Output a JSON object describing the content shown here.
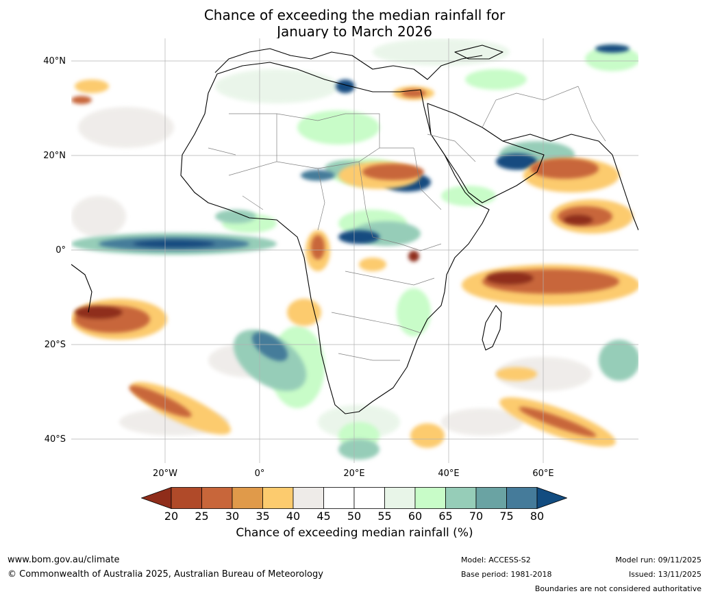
{
  "title": {
    "line1": "Chance of exceeding the median rainfall for",
    "line2": "January to March 2026"
  },
  "map": {
    "lat_labels": [
      "40°N",
      "20°N",
      "0°",
      "20°S",
      "40°S"
    ],
    "lon_labels": [
      "20°W",
      "0°",
      "20°E",
      "40°E",
      "60°E"
    ],
    "colors": {
      "land_border": "#000000",
      "country_border": "#808080",
      "grid": "#b0b0b0"
    }
  },
  "colorbar": {
    "ticks": [
      "20",
      "25",
      "30",
      "35",
      "40",
      "45",
      "50",
      "55",
      "60",
      "65",
      "70",
      "75",
      "80"
    ],
    "colors": [
      "#8f2d1a",
      "#b04a29",
      "#c8663a",
      "#e09a4a",
      "#fccb6e",
      "#eeebe8",
      "#ffffff",
      "#ffffff",
      "#e8f5e8",
      "#c8fcc8",
      "#96cdb8",
      "#6aa3a3",
      "#457b9a",
      "#124c80"
    ],
    "label": "Chance of exceeding median rainfall (%)"
  },
  "footer": {
    "website": "www.bom.gov.au/climate",
    "copyright": "© Commonwealth of Australia 2025, Australian Bureau of Meteorology",
    "model": "Model: ACCESS-S2",
    "base_period": "Base period: 1981-2018",
    "model_run": "Model run: 09/11/2025",
    "issued": "Issued: 13/11/2025",
    "disclaimer": "Boundaries are not considered authoritative"
  }
}
